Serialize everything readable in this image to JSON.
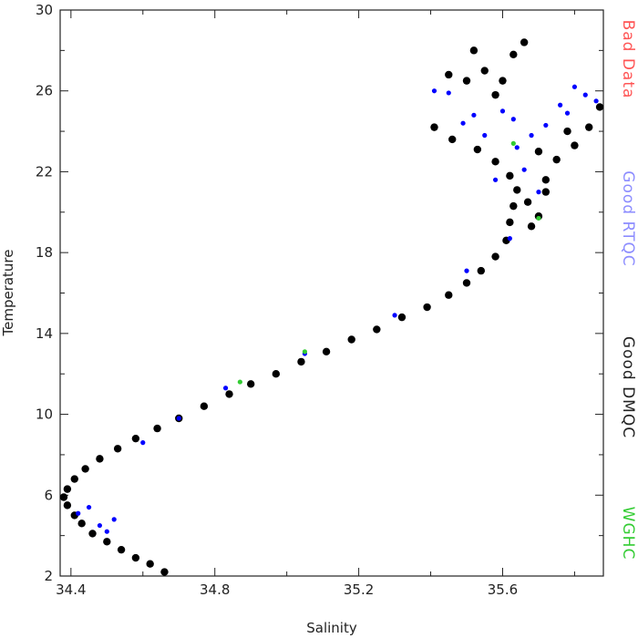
{
  "chart_data": {
    "type": "scatter",
    "title": "",
    "xlabel": "Salinity",
    "ylabel": "Temperature",
    "xlim": [
      34.37,
      35.88
    ],
    "ylim": [
      2,
      30
    ],
    "xticks": [
      "34.4",
      "34.8",
      "35.2",
      "35.6"
    ],
    "yticks": [
      "2",
      "6",
      "10",
      "14",
      "18",
      "22",
      "26",
      "30"
    ],
    "grid": false,
    "legend_placement": "right-vertical",
    "series": [
      {
        "name": "Bad Data",
        "color": "#ff5555",
        "points": []
      },
      {
        "name": "Good RTQC",
        "color": "#0000ff",
        "points": [
          [
            34.42,
            5.1
          ],
          [
            34.48,
            4.5
          ],
          [
            34.5,
            4.2
          ],
          [
            34.45,
            5.4
          ],
          [
            34.52,
            4.8
          ],
          [
            34.6,
            8.6
          ],
          [
            34.7,
            9.8
          ],
          [
            34.83,
            11.3
          ],
          [
            35.05,
            13.0
          ],
          [
            35.3,
            14.9
          ],
          [
            35.5,
            17.1
          ],
          [
            35.62,
            18.7
          ],
          [
            35.41,
            26.0
          ],
          [
            35.45,
            25.9
          ],
          [
            35.52,
            24.8
          ],
          [
            35.6,
            25.0
          ],
          [
            35.63,
            24.6
          ],
          [
            35.68,
            23.8
          ],
          [
            35.72,
            24.3
          ],
          [
            35.76,
            25.3
          ],
          [
            35.8,
            26.2
          ],
          [
            35.83,
            25.8
          ],
          [
            35.86,
            25.5
          ],
          [
            35.78,
            24.9
          ],
          [
            35.64,
            23.2
          ],
          [
            35.58,
            21.6
          ],
          [
            35.66,
            22.1
          ],
          [
            35.7,
            21.0
          ],
          [
            35.55,
            23.8
          ],
          [
            35.49,
            24.4
          ]
        ]
      },
      {
        "name": "Good DMQC",
        "color": "#000000",
        "points": [
          [
            34.66,
            2.2
          ],
          [
            34.62,
            2.6
          ],
          [
            34.58,
            2.9
          ],
          [
            34.54,
            3.3
          ],
          [
            34.5,
            3.7
          ],
          [
            34.46,
            4.1
          ],
          [
            34.43,
            4.6
          ],
          [
            34.41,
            5.0
          ],
          [
            34.39,
            5.5
          ],
          [
            34.38,
            5.9
          ],
          [
            34.39,
            6.3
          ],
          [
            34.41,
            6.8
          ],
          [
            34.44,
            7.3
          ],
          [
            34.48,
            7.8
          ],
          [
            34.53,
            8.3
          ],
          [
            34.58,
            8.8
          ],
          [
            34.64,
            9.3
          ],
          [
            34.7,
            9.8
          ],
          [
            34.77,
            10.4
          ],
          [
            34.84,
            11.0
          ],
          [
            34.9,
            11.5
          ],
          [
            34.97,
            12.0
          ],
          [
            35.04,
            12.6
          ],
          [
            35.11,
            13.1
          ],
          [
            35.18,
            13.7
          ],
          [
            35.25,
            14.2
          ],
          [
            35.32,
            14.8
          ],
          [
            35.39,
            15.3
          ],
          [
            35.45,
            15.9
          ],
          [
            35.5,
            16.5
          ],
          [
            35.54,
            17.1
          ],
          [
            35.58,
            17.8
          ],
          [
            35.61,
            18.6
          ],
          [
            35.62,
            19.5
          ],
          [
            35.63,
            20.3
          ],
          [
            35.64,
            21.1
          ],
          [
            35.62,
            21.8
          ],
          [
            35.58,
            22.5
          ],
          [
            35.53,
            23.1
          ],
          [
            35.46,
            23.6
          ],
          [
            35.41,
            24.2
          ],
          [
            35.67,
            20.5
          ],
          [
            35.7,
            19.8
          ],
          [
            35.72,
            21.6
          ],
          [
            35.75,
            22.6
          ],
          [
            35.8,
            23.3
          ],
          [
            35.84,
            24.2
          ],
          [
            35.87,
            25.2
          ],
          [
            35.78,
            24.0
          ],
          [
            35.7,
            23.0
          ],
          [
            35.5,
            26.5
          ],
          [
            35.55,
            27.0
          ],
          [
            35.58,
            25.8
          ],
          [
            35.66,
            28.4
          ],
          [
            35.63,
            27.8
          ],
          [
            35.52,
            28.0
          ],
          [
            35.45,
            26.8
          ],
          [
            35.6,
            26.5
          ],
          [
            35.72,
            21.0
          ],
          [
            35.68,
            19.3
          ]
        ]
      },
      {
        "name": "WGHC",
        "color": "#33cc33",
        "points": [
          [
            35.63,
            23.4
          ],
          [
            35.7,
            19.7
          ],
          [
            35.05,
            13.1
          ],
          [
            34.87,
            11.6
          ]
        ]
      }
    ]
  }
}
